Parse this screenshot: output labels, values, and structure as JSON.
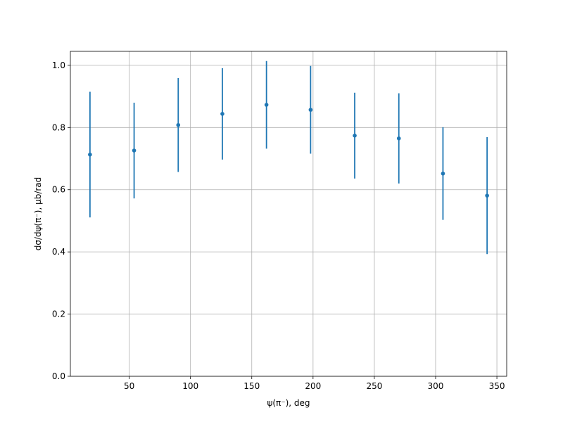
{
  "chart_data": {
    "type": "errorbar",
    "x_label": "ψ(π⁻), deg",
    "y_label": "dσ/dψ(π⁻), μb/rad",
    "x": [
      18,
      54,
      90,
      126,
      162,
      198,
      234,
      270,
      306,
      342
    ],
    "values": [
      0.713,
      0.726,
      0.808,
      0.844,
      0.873,
      0.857,
      0.774,
      0.765,
      0.652,
      0.581
    ],
    "errors": [
      0.202,
      0.154,
      0.151,
      0.147,
      0.141,
      0.141,
      0.138,
      0.145,
      0.149,
      0.188
    ],
    "color": "#1f77b4",
    "xlim": [
      2,
      358
    ],
    "xticks": [
      50,
      100,
      150,
      200,
      250,
      300,
      350
    ],
    "ylim": [
      0,
      1.045
    ],
    "yticks": [
      {
        "value": 0,
        "label": "0.0"
      },
      {
        "value": 0.2,
        "label": "0.2"
      },
      {
        "value": 0.4,
        "label": "0.4"
      },
      {
        "value": 0.6,
        "label": "0.6"
      },
      {
        "value": 0.8,
        "label": "0.8"
      },
      {
        "value": 1,
        "label": "1.0"
      }
    ],
    "grid": true
  }
}
